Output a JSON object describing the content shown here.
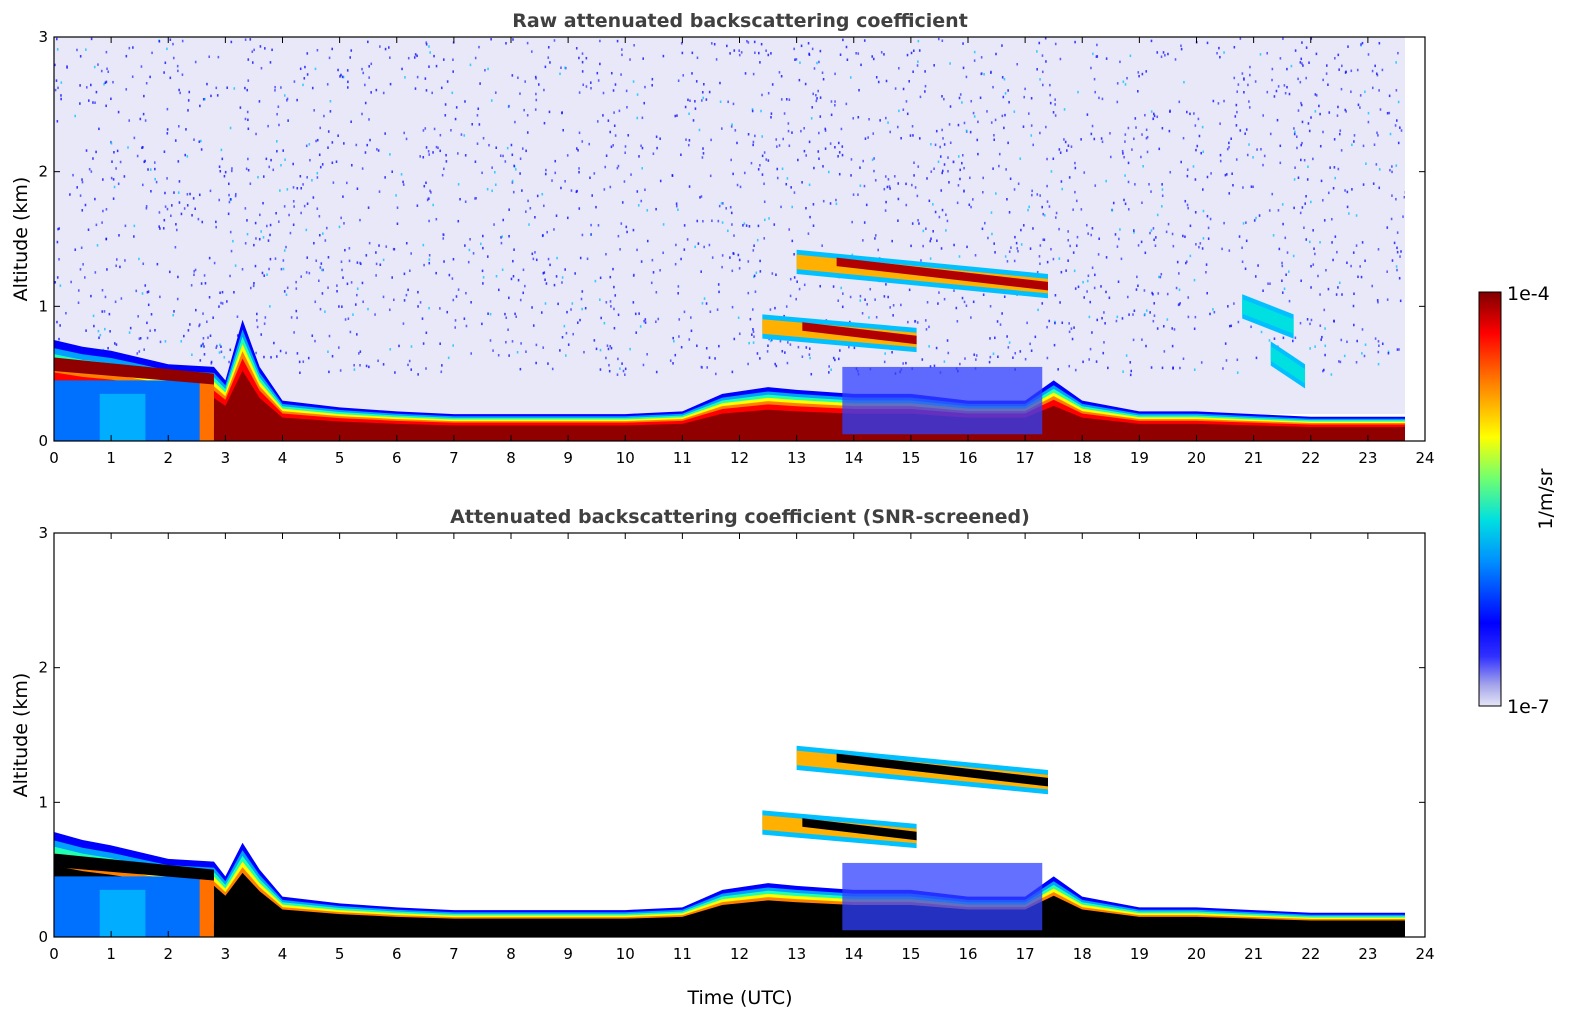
{
  "chart_data": [
    {
      "type": "heatmap",
      "title": "Raw attenuated backscattering coefficient",
      "xlabel": "",
      "ylabel": "Altitude (km)",
      "xlim": [
        0,
        24
      ],
      "ylim": [
        0,
        3
      ],
      "xticks": [
        0,
        1,
        2,
        3,
        4,
        5,
        6,
        7,
        8,
        9,
        10,
        11,
        12,
        13,
        14,
        15,
        16,
        17,
        18,
        19,
        20,
        21,
        22,
        23,
        24
      ],
      "yticks": [
        0,
        1,
        2,
        3
      ],
      "data_end_time": 23.65,
      "color_scale": "log",
      "colorbar_range": [
        "1e-7",
        "1e-4"
      ],
      "boundary_layer_top_km": [
        {
          "x": 0,
          "y": 0.75
        },
        {
          "x": 0.5,
          "y": 0.7
        },
        {
          "x": 1,
          "y": 0.67
        },
        {
          "x": 1.5,
          "y": 0.62
        },
        {
          "x": 2,
          "y": 0.57
        },
        {
          "x": 2.8,
          "y": 0.55
        },
        {
          "x": 3.0,
          "y": 0.45
        },
        {
          "x": 3.3,
          "y": 0.9
        },
        {
          "x": 3.6,
          "y": 0.55
        },
        {
          "x": 4,
          "y": 0.3
        },
        {
          "x": 5,
          "y": 0.25
        },
        {
          "x": 6,
          "y": 0.22
        },
        {
          "x": 7,
          "y": 0.2
        },
        {
          "x": 8,
          "y": 0.2
        },
        {
          "x": 9,
          "y": 0.2
        },
        {
          "x": 10,
          "y": 0.2
        },
        {
          "x": 11,
          "y": 0.22
        },
        {
          "x": 11.7,
          "y": 0.35
        },
        {
          "x": 12.5,
          "y": 0.4
        },
        {
          "x": 13,
          "y": 0.38
        },
        {
          "x": 14,
          "y": 0.35
        },
        {
          "x": 15,
          "y": 0.35
        },
        {
          "x": 16,
          "y": 0.3
        },
        {
          "x": 17,
          "y": 0.3
        },
        {
          "x": 17.5,
          "y": 0.45
        },
        {
          "x": 18,
          "y": 0.3
        },
        {
          "x": 19,
          "y": 0.22
        },
        {
          "x": 20,
          "y": 0.22
        },
        {
          "x": 21,
          "y": 0.2
        },
        {
          "x": 22,
          "y": 0.18
        },
        {
          "x": 23.65,
          "y": 0.18
        }
      ],
      "cloud_layers": [
        {
          "x_start": 13.0,
          "x_end": 17.4,
          "y_start_km": 1.33,
          "y_end_km": 1.15
        },
        {
          "x_start": 12.4,
          "x_end": 15.1,
          "y_start_km": 0.85,
          "y_end_km": 0.75
        },
        {
          "x_start": 20.8,
          "x_end": 21.7,
          "y_start_km": 1.0,
          "y_end_km": 0.85
        },
        {
          "x_start": 21.3,
          "x_end": 21.9,
          "y_start_km": 0.65,
          "y_end_km": 0.48
        }
      ]
    },
    {
      "type": "heatmap",
      "title": "Attenuated backscattering coefficient (SNR-screened)",
      "xlabel": "Time (UTC)",
      "ylabel": "Altitude (km)",
      "xlim": [
        0,
        24
      ],
      "ylim": [
        0,
        3
      ],
      "xticks": [
        0,
        1,
        2,
        3,
        4,
        5,
        6,
        7,
        8,
        9,
        10,
        11,
        12,
        13,
        14,
        15,
        16,
        17,
        18,
        19,
        20,
        21,
        22,
        23,
        24
      ],
      "yticks": [
        0,
        1,
        2,
        3
      ],
      "data_end_time": 23.65,
      "color_scale": "log",
      "colorbar_range": [
        "1e-7",
        "1e-4"
      ],
      "boundary_layer_top_km": [
        {
          "x": 0,
          "y": 0.78
        },
        {
          "x": 0.5,
          "y": 0.72
        },
        {
          "x": 1,
          "y": 0.68
        },
        {
          "x": 1.5,
          "y": 0.63
        },
        {
          "x": 2,
          "y": 0.58
        },
        {
          "x": 2.8,
          "y": 0.56
        },
        {
          "x": 3.0,
          "y": 0.45
        },
        {
          "x": 3.3,
          "y": 0.7
        },
        {
          "x": 3.6,
          "y": 0.5
        },
        {
          "x": 4,
          "y": 0.3
        },
        {
          "x": 5,
          "y": 0.25
        },
        {
          "x": 6,
          "y": 0.22
        },
        {
          "x": 7,
          "y": 0.2
        },
        {
          "x": 8,
          "y": 0.2
        },
        {
          "x": 9,
          "y": 0.2
        },
        {
          "x": 10,
          "y": 0.2
        },
        {
          "x": 11,
          "y": 0.22
        },
        {
          "x": 11.7,
          "y": 0.35
        },
        {
          "x": 12.5,
          "y": 0.4
        },
        {
          "x": 13,
          "y": 0.38
        },
        {
          "x": 14,
          "y": 0.35
        },
        {
          "x": 15,
          "y": 0.35
        },
        {
          "x": 16,
          "y": 0.3
        },
        {
          "x": 17,
          "y": 0.3
        },
        {
          "x": 17.5,
          "y": 0.45
        },
        {
          "x": 18,
          "y": 0.3
        },
        {
          "x": 19,
          "y": 0.22
        },
        {
          "x": 20,
          "y": 0.22
        },
        {
          "x": 21,
          "y": 0.2
        },
        {
          "x": 22,
          "y": 0.18
        },
        {
          "x": 23.65,
          "y": 0.18
        }
      ],
      "cloud_layers": [
        {
          "x_start": 13.0,
          "x_end": 17.4,
          "y_start_km": 1.33,
          "y_end_km": 1.15
        },
        {
          "x_start": 12.4,
          "x_end": 15.1,
          "y_start_km": 0.85,
          "y_end_km": 0.75
        }
      ]
    }
  ],
  "colorbar": {
    "label": "1/m/sr",
    "max_label": "1e-4",
    "min_label": "1e-7",
    "colors": [
      "#e6e6f7",
      "#c8c8f0",
      "#a5a5eb",
      "#7f7fe8",
      "#0000ff",
      "#0030ff",
      "#0060ff",
      "#0090ff",
      "#00c0ff",
      "#00e0e0",
      "#20ffb0",
      "#70ff70",
      "#b0ff30",
      "#ffff00",
      "#ffc000",
      "#ff8000",
      "#ff4000",
      "#ff0000",
      "#c00000",
      "#800000"
    ]
  }
}
